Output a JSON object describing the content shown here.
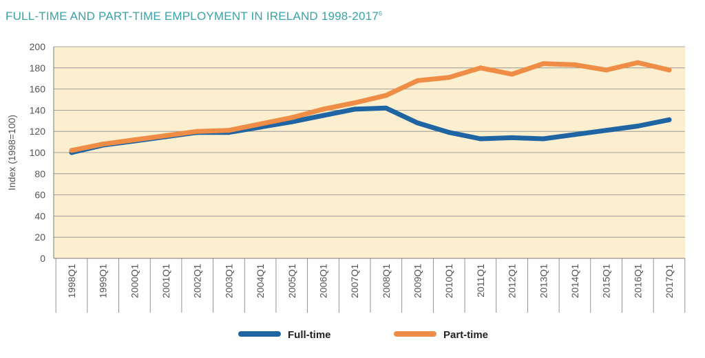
{
  "chart_data": {
    "type": "line",
    "title": "FULL-TIME AND PART-TIME EMPLOYMENT IN IRELAND 1998-2017",
    "title_superscript": "6",
    "ylabel": "Index (1998=100)",
    "xlabel": "",
    "ylim": [
      0,
      200
    ],
    "yticks": [
      0,
      20,
      40,
      60,
      80,
      100,
      120,
      140,
      160,
      180,
      200
    ],
    "categories": [
      "1998Q1",
      "1999Q1",
      "2000Q1",
      "2001Q1",
      "2002Q1",
      "2003Q1",
      "2004Q1",
      "2005Q1",
      "2006Q1",
      "2007Q1",
      "2008Q1",
      "2009Q1",
      "2010Q1",
      "2011Q1",
      "2012Q1",
      "2013Q1",
      "2014Q1",
      "2015Q1",
      "2016Q1",
      "2017Q1"
    ],
    "grid": true,
    "plot_background": "#fbefd0",
    "legend_position": "bottom",
    "series": [
      {
        "name": "Full-time",
        "color": "#1f65a3",
        "values": [
          100,
          107,
          111,
          115,
          119,
          119,
          124,
          129,
          135,
          141,
          142,
          128,
          119,
          113,
          114,
          113,
          117,
          121,
          125,
          131
        ]
      },
      {
        "name": "Part-time",
        "color": "#ef8c45",
        "values": [
          102,
          108,
          112,
          116,
          120,
          121,
          127,
          133,
          141,
          147,
          154,
          168,
          171,
          180,
          174,
          184,
          183,
          178,
          185,
          178
        ]
      }
    ]
  }
}
